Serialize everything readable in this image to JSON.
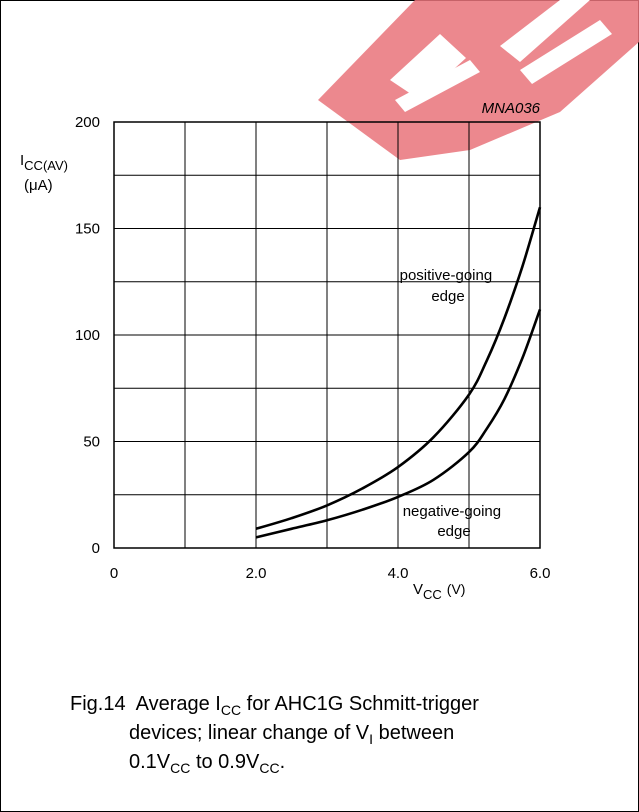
{
  "chart_data": {
    "type": "line",
    "id_label": "MNA036",
    "xlim": [
      0,
      6
    ],
    "ylim": [
      0,
      200
    ],
    "x_ticks": [
      {
        "value": 0,
        "label": "0"
      },
      {
        "value": 2,
        "label": "2.0"
      },
      {
        "value": 4,
        "label": "4.0"
      },
      {
        "value": 6,
        "label": "6.0"
      }
    ],
    "y_ticks": [
      {
        "value": 0,
        "label": "0"
      },
      {
        "value": 50,
        "label": "50"
      },
      {
        "value": 100,
        "label": "100"
      },
      {
        "value": 150,
        "label": "150"
      },
      {
        "value": 200,
        "label": "200"
      }
    ],
    "grid_x": [
      0,
      1,
      2,
      3,
      4,
      5,
      6
    ],
    "grid_y": [
      0,
      25,
      50,
      75,
      100,
      125,
      150,
      175,
      200
    ],
    "xlabel": {
      "main": "V",
      "sub": "CC",
      "unit": "(V)"
    },
    "ylabel": {
      "main": "I",
      "sub": "CC(AV)",
      "unit": "(μA)"
    },
    "series": [
      {
        "name_lines": [
          "positive-going",
          "edge"
        ],
        "x": [
          2.0,
          2.5,
          3.0,
          3.5,
          4.0,
          4.5,
          5.0,
          5.25,
          5.5,
          5.75,
          6.0
        ],
        "values": [
          9,
          14,
          20,
          28,
          38,
          52,
          72,
          88,
          108,
          132,
          160
        ]
      },
      {
        "name_lines": [
          "negative-going",
          "edge"
        ],
        "x": [
          2.0,
          2.5,
          3.0,
          3.5,
          4.0,
          4.5,
          5.0,
          5.25,
          5.5,
          5.75,
          6.0
        ],
        "values": [
          5,
          9,
          13,
          18,
          24,
          32,
          45,
          56,
          70,
          89,
          112
        ]
      }
    ]
  },
  "caption": {
    "fig": "Fig.14",
    "line1_pre": "Average I",
    "line1_sub": "CC",
    "line1_post": " for AHC1G Schmitt-trigger",
    "line2_pre": "devices; linear change of V",
    "line2_sub": "I",
    "line2_post": " between",
    "line3_a": "0.1V",
    "line3_a_sub": "CC",
    "line3_mid": " to 0.9V",
    "line3_b_sub": "CC",
    "line3_end": "."
  },
  "colors": {
    "watermark": "#e9737a",
    "ink": "#000000"
  }
}
